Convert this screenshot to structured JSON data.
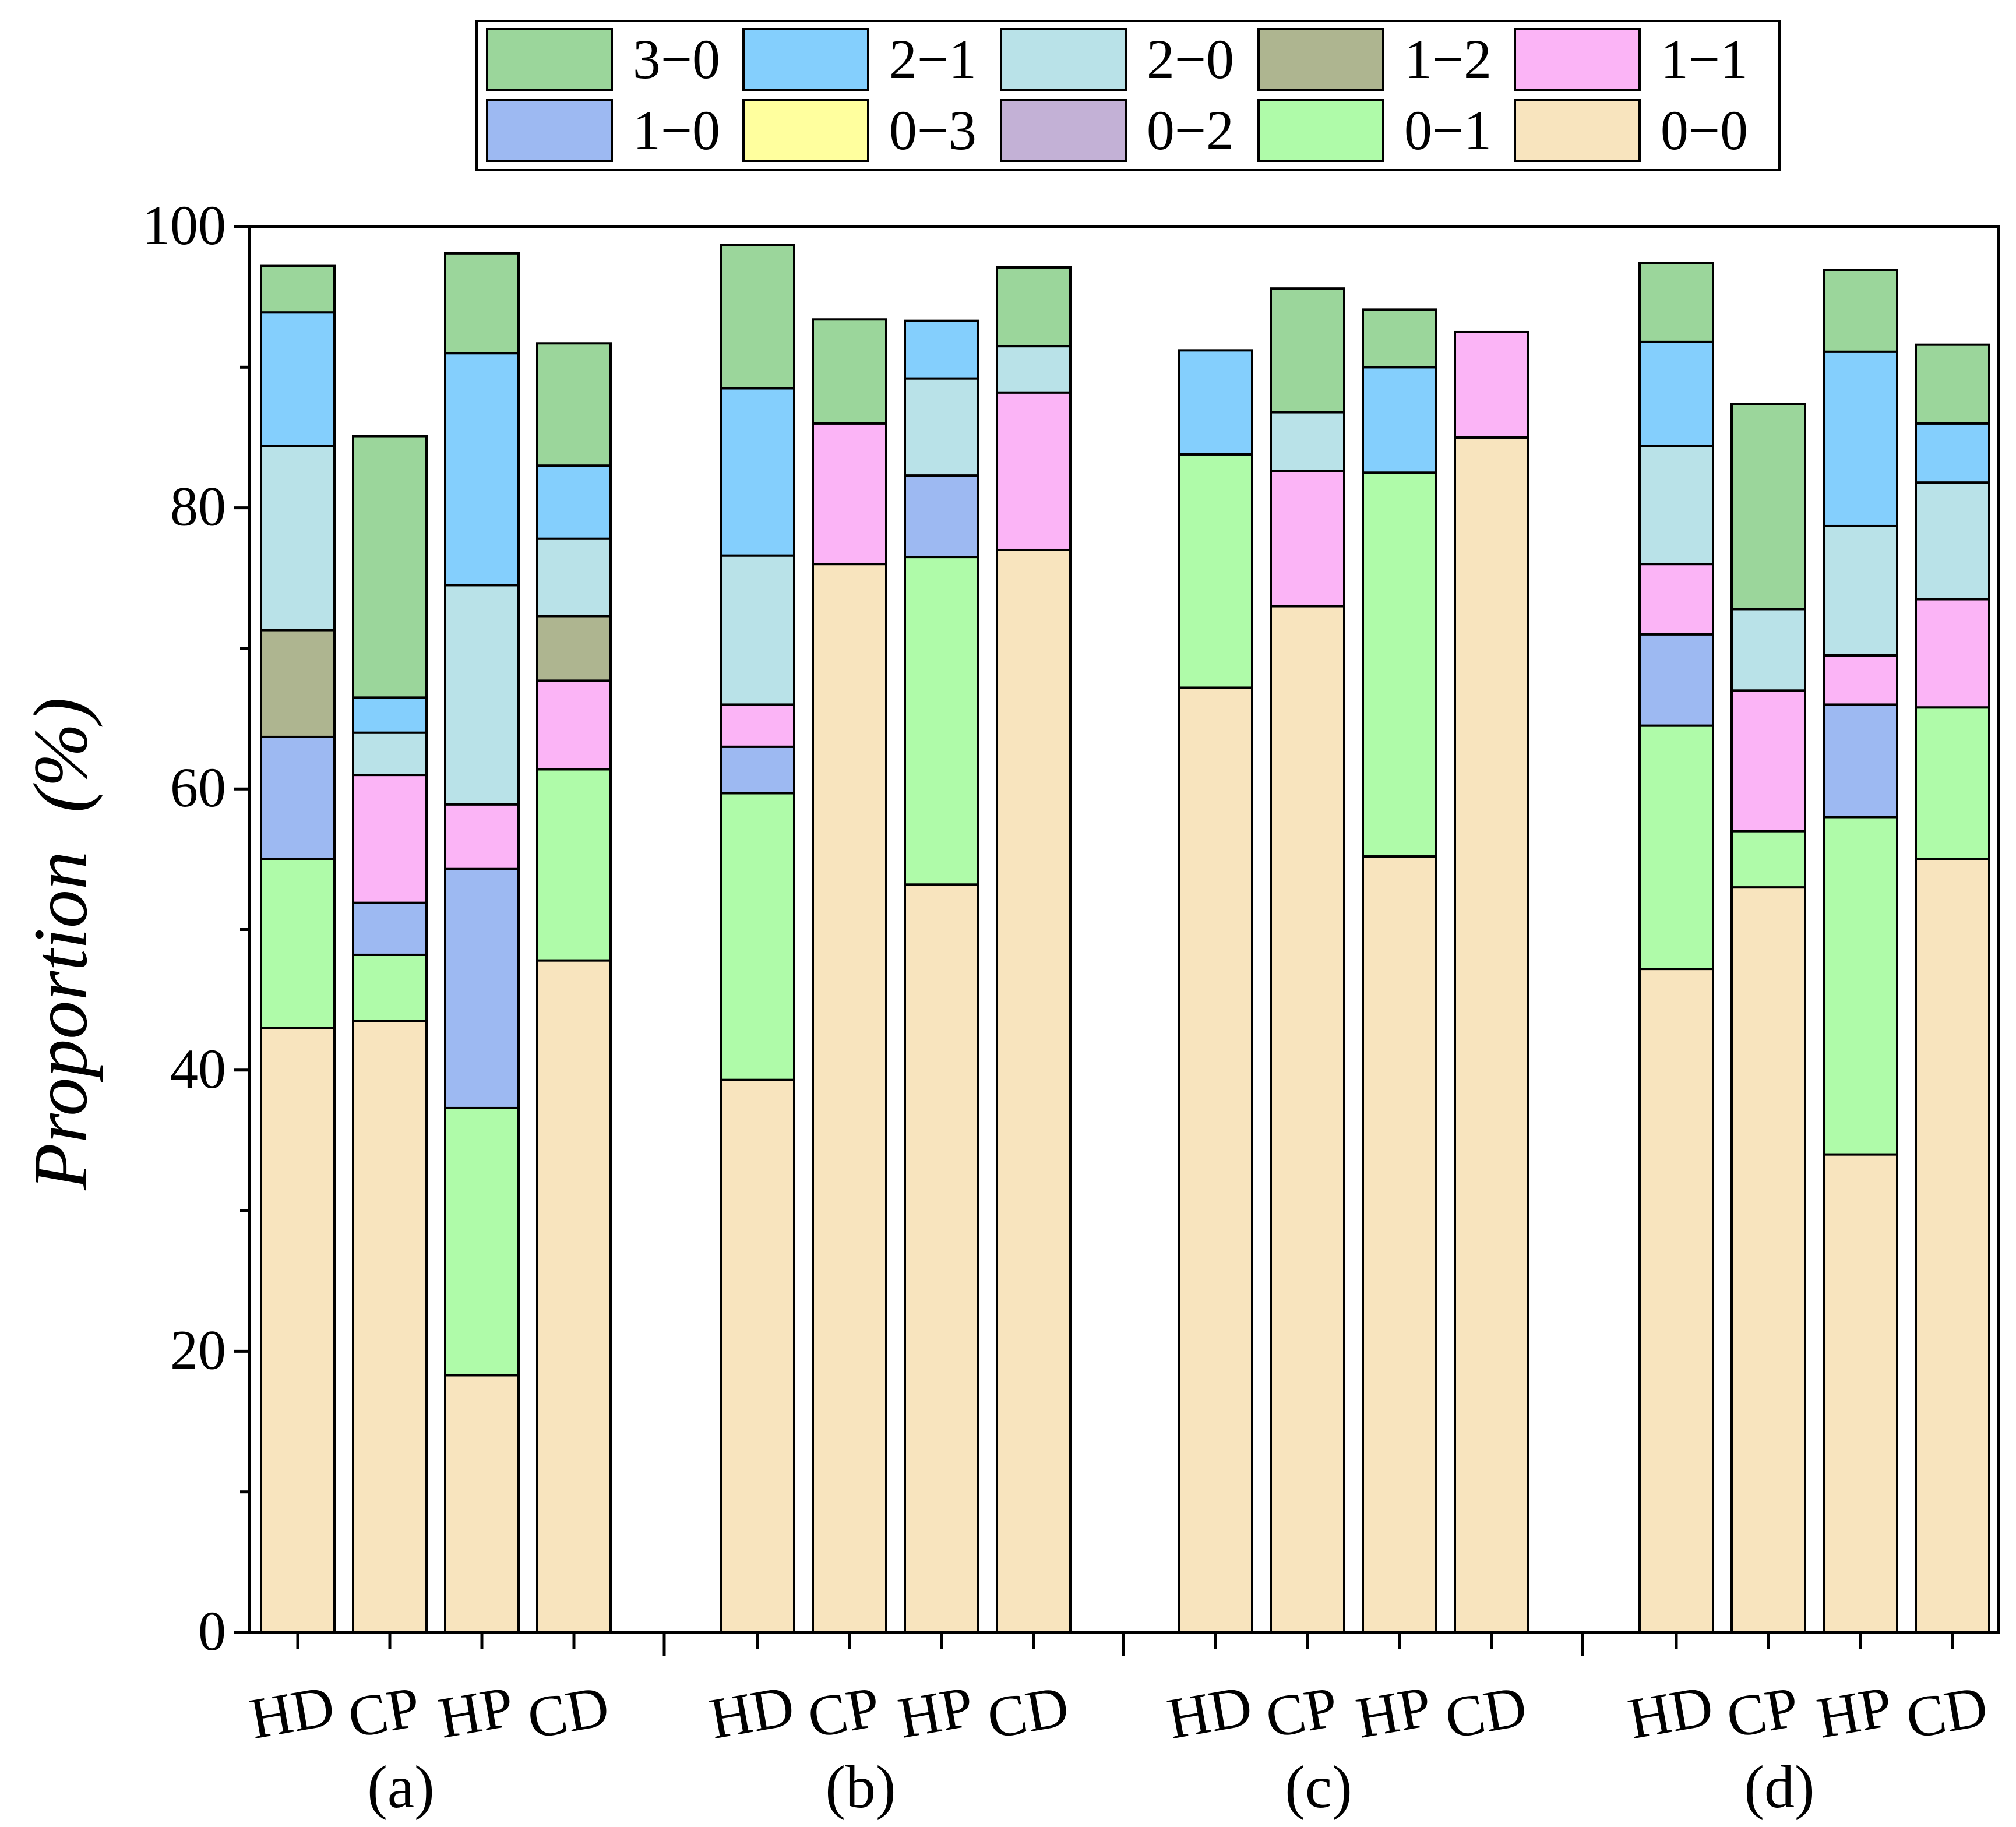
{
  "chart_data": {
    "type": "bar",
    "stacked": true,
    "ylabel": "Proportion  (%)",
    "ylim": [
      0,
      100
    ],
    "yticks": [
      0,
      20,
      40,
      60,
      80,
      100
    ],
    "legend_position": "top",
    "groups": [
      {
        "label": "(a)",
        "categories": [
          "HD",
          "CP",
          "HP",
          "CD"
        ]
      },
      {
        "label": "(b)",
        "categories": [
          "HD",
          "CP",
          "HP",
          "CD"
        ]
      },
      {
        "label": "(c)",
        "categories": [
          "HD",
          "CP",
          "HP",
          "CD"
        ]
      },
      {
        "label": "(d)",
        "categories": [
          "HD",
          "CP",
          "HP",
          "CD"
        ]
      }
    ],
    "series": [
      {
        "name": "0−0",
        "color": "#F8E4BE",
        "values": [
          43,
          43.5,
          18.3,
          47.8,
          39.3,
          76,
          53.2,
          77,
          67.2,
          73,
          55.2,
          85,
          47.2,
          53,
          34,
          55
        ]
      },
      {
        "name": "0−1",
        "color": "#AFFBA9",
        "values": [
          12,
          4.7,
          19,
          13.6,
          20.4,
          0,
          23.3,
          0,
          16.6,
          0,
          27.3,
          0,
          17.3,
          4,
          24,
          10.8
        ]
      },
      {
        "name": "0−2",
        "color": "#C3B1D6",
        "values": [
          0,
          0,
          0,
          0,
          0,
          0,
          0,
          0,
          0,
          0,
          0,
          0,
          0,
          0,
          0,
          0
        ]
      },
      {
        "name": "0−3",
        "color": "#FFFF9E",
        "values": [
          0,
          0,
          0,
          0,
          0,
          0,
          0,
          0,
          0,
          0,
          0,
          0,
          0,
          0,
          0,
          0
        ]
      },
      {
        "name": "1−0",
        "color": "#9DB9F2",
        "values": [
          8.7,
          3.7,
          17,
          0,
          3.3,
          0,
          5.8,
          0,
          0,
          0,
          0,
          0,
          6.5,
          0,
          8,
          0
        ]
      },
      {
        "name": "1−1",
        "color": "#FBB4F6",
        "values": [
          0,
          9.1,
          4.6,
          6.3,
          3,
          10,
          0,
          11.2,
          0,
          9.6,
          0,
          7.5,
          5,
          10,
          3.5,
          7.7
        ]
      },
      {
        "name": "1−2",
        "color": "#AEB590",
        "values": [
          7.6,
          0,
          0,
          4.6,
          0,
          0,
          0,
          0,
          0,
          0,
          0,
          0,
          0,
          0,
          0,
          0
        ]
      },
      {
        "name": "2−0",
        "color": "#B9E2E8",
        "values": [
          13.1,
          3,
          15.6,
          5.5,
          10.6,
          0,
          6.9,
          3.3,
          0,
          4.2,
          0,
          0,
          8.4,
          5.8,
          9.2,
          8.3
        ]
      },
      {
        "name": "2−1",
        "color": "#84CFFD",
        "values": [
          9.5,
          2.5,
          16.5,
          5.2,
          11.9,
          0,
          4.1,
          0,
          7.4,
          0,
          7.5,
          0,
          7.4,
          0,
          12.4,
          4.2
        ]
      },
      {
        "name": "3−0",
        "color": "#9BD69B",
        "values": [
          3.3,
          18.6,
          7.1,
          8.7,
          10.2,
          7.4,
          0,
          5.6,
          0,
          8.8,
          4.1,
          0,
          5.6,
          14.6,
          5.8,
          5.6
        ]
      }
    ],
    "legend_order": [
      "3−0",
      "2−1",
      "2−0",
      "1−2",
      "1−1",
      "1−0",
      "0−3",
      "0−2",
      "0−1",
      "0−0"
    ]
  }
}
